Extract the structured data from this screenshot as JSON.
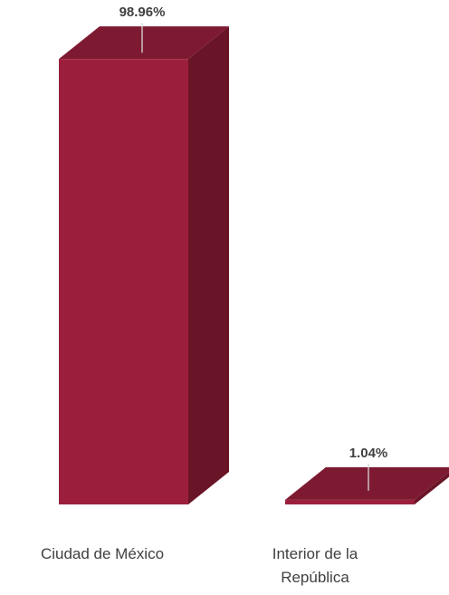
{
  "chart_data": {
    "type": "bar",
    "style": "3d-column",
    "categories": [
      "Ciudad de México",
      "Interior de la República"
    ],
    "category_label_lines": [
      [
        "Ciudad de México"
      ],
      [
        "Interior de la",
        "República"
      ]
    ],
    "values": [
      98.96,
      1.04
    ],
    "data_labels": [
      "98.96%",
      "1.04%"
    ],
    "unit": "%",
    "title": "",
    "xlabel": "",
    "ylabel": "",
    "ylim": [
      0,
      100
    ],
    "grid": false,
    "legend": "none",
    "colors": {
      "front": "#9b1f3d",
      "side": "#6a1427",
      "top": "#7d1a32",
      "leader": "#d9d9d9",
      "text": "#404040"
    }
  }
}
